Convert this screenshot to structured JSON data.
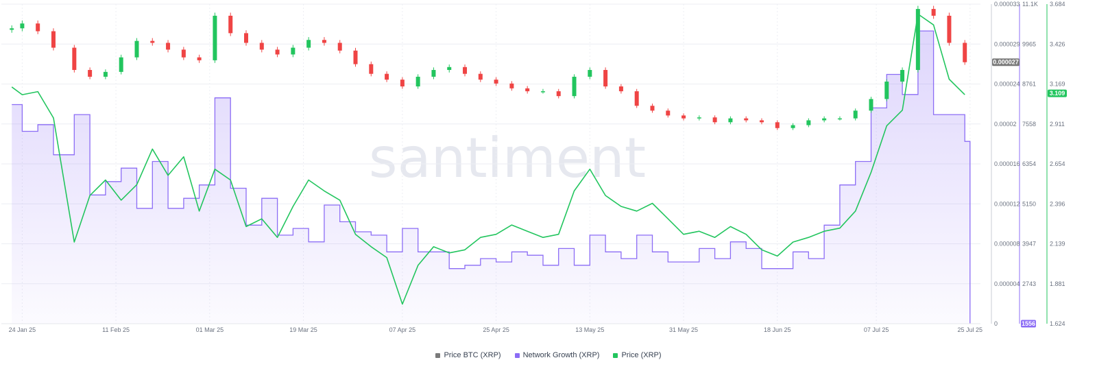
{
  "watermark": "santiment",
  "legend": [
    {
      "label": "Price BTC (XRP)",
      "color": "#7a7a7a"
    },
    {
      "label": "Network Growth (XRP)",
      "color": "#8b6cf5"
    },
    {
      "label": "Price (XRP)",
      "color": "#22c55e"
    }
  ],
  "badges": {
    "btc_price": "0.000027",
    "network_growth": "1556",
    "price": "3.109"
  },
  "chart_data": {
    "type": "line",
    "x_ticks": [
      "24 Jan 25",
      "11 Feb 25",
      "01 Mar 25",
      "19 Mar 25",
      "07 Apr 25",
      "25 Apr 25",
      "13 May 25",
      "31 May 25",
      "18 Jun 25",
      "07 Jul 25",
      "25 Jul 25"
    ],
    "axes": {
      "btc": {
        "ticks": [
          "0.000033",
          "0.000029",
          "0.000024",
          "0.00002",
          "0.000016",
          "0.000012",
          "0.000008",
          "0.000004",
          "0"
        ],
        "range": [
          0,
          3.3e-05
        ]
      },
      "network_growth": {
        "ticks": [
          "11.1K",
          "9965",
          "8761",
          "7558",
          "6354",
          "5150",
          "3947",
          "2743",
          "1556"
        ],
        "range": [
          1556,
          11100
        ]
      },
      "price": {
        "ticks": [
          "3.684",
          "3.426",
          "3.169",
          "2.911",
          "2.654",
          "2.396",
          "2.139",
          "1.881",
          "1.624"
        ],
        "range": [
          1.624,
          3.684
        ]
      }
    },
    "grid": true,
    "legend_position": "bottom-center",
    "series": [
      {
        "name": "Price BTC (XRP)",
        "type": "candlestick",
        "color_up": "#22c55e",
        "color_down": "#ef4444",
        "dates": [
          "22 Jan 25",
          "24 Jan 25",
          "27 Jan 25",
          "30 Jan 25",
          "03 Feb 25",
          "06 Feb 25",
          "09 Feb 25",
          "12 Feb 25",
          "15 Feb 25",
          "18 Feb 25",
          "21 Feb 25",
          "24 Feb 25",
          "27 Feb 25",
          "02 Mar 25",
          "05 Mar 25",
          "08 Mar 25",
          "11 Mar 25",
          "14 Mar 25",
          "17 Mar 25",
          "20 Mar 25",
          "23 Mar 25",
          "26 Mar 25",
          "29 Mar 25",
          "01 Apr 25",
          "04 Apr 25",
          "07 Apr 25",
          "10 Apr 25",
          "13 Apr 25",
          "16 Apr 25",
          "19 Apr 25",
          "22 Apr 25",
          "25 Apr 25",
          "28 Apr 25",
          "01 May 25",
          "04 May 25",
          "07 May 25",
          "10 May 25",
          "13 May 25",
          "16 May 25",
          "19 May 25",
          "22 May 25",
          "25 May 25",
          "28 May 25",
          "31 May 25",
          "03 Jun 25",
          "06 Jun 25",
          "09 Jun 25",
          "12 Jun 25",
          "15 Jun 25",
          "18 Jun 25",
          "21 Jun 25",
          "24 Jun 25",
          "27 Jun 25",
          "30 Jun 25",
          "03 Jul 25",
          "06 Jul 25",
          "09 Jul 25",
          "12 Jul 25",
          "15 Jul 25",
          "18 Jul 25",
          "21 Jul 25",
          "24 Jul 25"
        ],
        "values": [
          3.05e-05,
          3.1e-05,
          3.02e-05,
          2.85e-05,
          2.62e-05,
          2.55e-05,
          2.6e-05,
          2.75e-05,
          2.92e-05,
          2.9e-05,
          2.83e-05,
          2.75e-05,
          2.72e-05,
          3.18e-05,
          3e-05,
          2.9e-05,
          2.83e-05,
          2.78e-05,
          2.85e-05,
          2.93e-05,
          2.9e-05,
          2.82e-05,
          2.68e-05,
          2.58e-05,
          2.52e-05,
          2.45e-05,
          2.55e-05,
          2.62e-05,
          2.65e-05,
          2.58e-05,
          2.52e-05,
          2.48e-05,
          2.43e-05,
          2.4e-05,
          2.4e-05,
          2.35e-05,
          2.55e-05,
          2.62e-05,
          2.45e-05,
          2.4e-05,
          2.25e-05,
          2.2e-05,
          2.15e-05,
          2.12e-05,
          2.13e-05,
          2.08e-05,
          2.12e-05,
          2.1e-05,
          2.08e-05,
          2.02e-05,
          2.05e-05,
          2.1e-05,
          2.12e-05,
          2.12e-05,
          2.2e-05,
          2.32e-05,
          2.5e-05,
          2.62e-05,
          3.25e-05,
          3.18e-05,
          2.9e-05,
          2.7e-05
        ]
      },
      {
        "name": "Network Growth (XRP)",
        "type": "area",
        "color": "#8b6cf5",
        "dates": [
          "22 Jan 25",
          "24 Jan 25",
          "27 Jan 25",
          "30 Jan 25",
          "03 Feb 25",
          "06 Feb 25",
          "09 Feb 25",
          "12 Feb 25",
          "15 Feb 25",
          "18 Feb 25",
          "21 Feb 25",
          "24 Feb 25",
          "27 Feb 25",
          "02 Mar 25",
          "05 Mar 25",
          "08 Mar 25",
          "11 Mar 25",
          "14 Mar 25",
          "17 Mar 25",
          "20 Mar 25",
          "23 Mar 25",
          "26 Mar 25",
          "29 Mar 25",
          "01 Apr 25",
          "04 Apr 25",
          "07 Apr 25",
          "10 Apr 25",
          "13 Apr 25",
          "16 Apr 25",
          "19 Apr 25",
          "22 Apr 25",
          "25 Apr 25",
          "28 Apr 25",
          "01 May 25",
          "04 May 25",
          "07 May 25",
          "10 May 25",
          "13 May 25",
          "16 May 25",
          "19 May 25",
          "22 May 25",
          "25 May 25",
          "28 May 25",
          "31 May 25",
          "03 Jun 25",
          "06 Jun 25",
          "09 Jun 25",
          "12 Jun 25",
          "15 Jun 25",
          "18 Jun 25",
          "21 Jun 25",
          "24 Jun 25",
          "27 Jun 25",
          "30 Jun 25",
          "03 Jul 25",
          "06 Jul 25",
          "09 Jul 25",
          "12 Jul 25",
          "15 Jul 25",
          "18 Jul 25",
          "21 Jul 25",
          "24 Jul 25",
          "25 Jul 25"
        ],
        "values": [
          8100,
          7300,
          7500,
          6600,
          7800,
          5400,
          5800,
          6200,
          5000,
          6400,
          5000,
          5300,
          5700,
          8300,
          5600,
          4500,
          5300,
          4200,
          4400,
          4000,
          5100,
          4600,
          4300,
          4200,
          3700,
          4400,
          3700,
          3700,
          3200,
          3300,
          3500,
          3400,
          3700,
          3600,
          3300,
          3800,
          3300,
          4200,
          3700,
          3500,
          4200,
          3700,
          3400,
          3400,
          3800,
          3500,
          4000,
          3800,
          3200,
          3200,
          3700,
          3500,
          4500,
          5700,
          6400,
          8000,
          9000,
          8400,
          10300,
          7800,
          7800,
          7000,
          1556
        ]
      },
      {
        "name": "Price (XRP)",
        "type": "line",
        "color": "#22c55e",
        "dates": [
          "22 Jan 25",
          "24 Jan 25",
          "27 Jan 25",
          "30 Jan 25",
          "03 Feb 25",
          "06 Feb 25",
          "09 Feb 25",
          "12 Feb 25",
          "15 Feb 25",
          "18 Feb 25",
          "21 Feb 25",
          "24 Feb 25",
          "27 Feb 25",
          "02 Mar 25",
          "05 Mar 25",
          "08 Mar 25",
          "11 Mar 25",
          "14 Mar 25",
          "17 Mar 25",
          "20 Mar 25",
          "23 Mar 25",
          "26 Mar 25",
          "29 Mar 25",
          "01 Apr 25",
          "04 Apr 25",
          "07 Apr 25",
          "10 Apr 25",
          "13 Apr 25",
          "16 Apr 25",
          "19 Apr 25",
          "22 Apr 25",
          "25 Apr 25",
          "28 Apr 25",
          "01 May 25",
          "04 May 25",
          "07 May 25",
          "10 May 25",
          "13 May 25",
          "16 May 25",
          "19 May 25",
          "22 May 25",
          "25 May 25",
          "28 May 25",
          "31 May 25",
          "03 Jun 25",
          "06 Jun 25",
          "09 Jun 25",
          "12 Jun 25",
          "15 Jun 25",
          "18 Jun 25",
          "21 Jun 25",
          "24 Jun 25",
          "27 Jun 25",
          "30 Jun 25",
          "03 Jul 25",
          "06 Jul 25",
          "09 Jul 25",
          "12 Jul 25",
          "15 Jul 25",
          "18 Jul 25",
          "21 Jul 25",
          "24 Jul 25"
        ],
        "values": [
          3.15,
          3.1,
          3.12,
          2.95,
          2.15,
          2.45,
          2.55,
          2.42,
          2.52,
          2.75,
          2.58,
          2.7,
          2.35,
          2.62,
          2.55,
          2.25,
          2.3,
          2.18,
          2.38,
          2.55,
          2.48,
          2.42,
          2.2,
          2.12,
          2.05,
          1.75,
          2.0,
          2.12,
          2.08,
          2.1,
          2.18,
          2.2,
          2.26,
          2.22,
          2.18,
          2.2,
          2.48,
          2.62,
          2.45,
          2.38,
          2.35,
          2.4,
          2.3,
          2.2,
          2.22,
          2.18,
          2.25,
          2.2,
          2.1,
          2.06,
          2.15,
          2.18,
          2.22,
          2.24,
          2.35,
          2.6,
          2.9,
          3.0,
          3.62,
          3.55,
          3.2,
          3.1
        ]
      }
    ]
  }
}
